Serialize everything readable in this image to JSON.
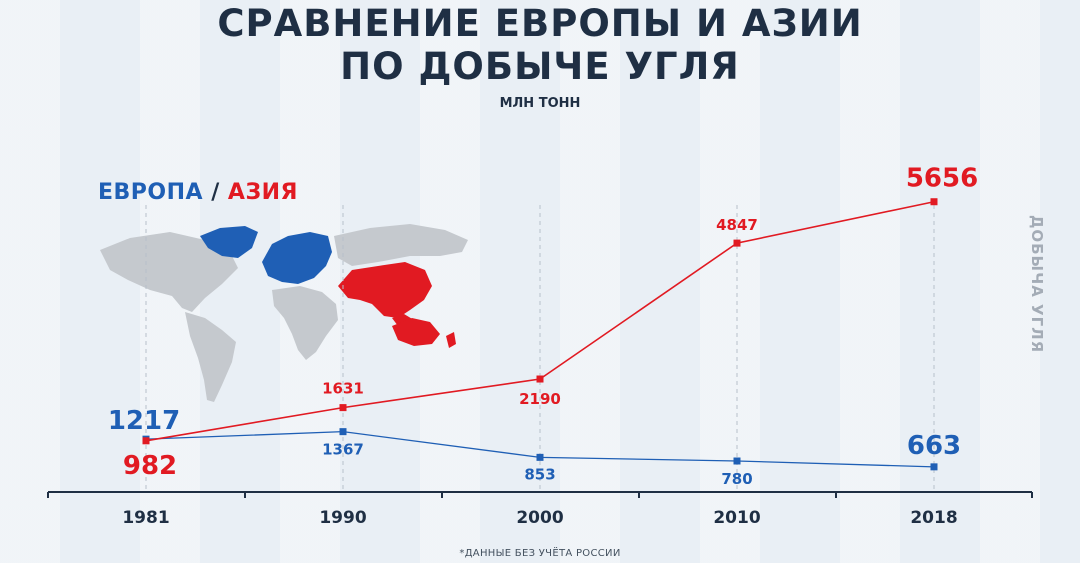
{
  "title": {
    "line1": "СРАВНЕНИЕ ЕВРОПЫ И АЗИИ",
    "line2": "ПО ДОБЫЧЕ УГЛЯ"
  },
  "unit_label": "МЛН ТОНН",
  "legend": {
    "europe": "ЕВРОПА",
    "separator": " / ",
    "asia": "АЗИЯ"
  },
  "side_label": "ДОБЫЧА УГЛЯ",
  "footnote": "*ДАННЫЕ БЕЗ УЧЁТА РОССИИ",
  "colors": {
    "europe": "#1f5fb5",
    "asia": "#e11a22",
    "axis": "#1f2f44",
    "map": "#c5c9ce"
  },
  "chart_data": {
    "type": "line",
    "categories": [
      "1981",
      "1990",
      "2000",
      "2010",
      "2018"
    ],
    "series": [
      {
        "name": "ЕВРОПА",
        "values": [
          1217,
          1367,
          853,
          780,
          663
        ]
      },
      {
        "name": "АЗИЯ",
        "values": [
          982,
          1631,
          2190,
          4847,
          5656
        ]
      }
    ],
    "title": "СРАВНЕНИЕ ЕВРОПЫ И АЗИИ ПО ДОБЫЧЕ УГЛЯ",
    "ylabel": "ДОБЫЧА УГЛЯ",
    "unit": "МЛН ТОНН",
    "grid": "vertical-dashed",
    "legend": "top-left"
  }
}
